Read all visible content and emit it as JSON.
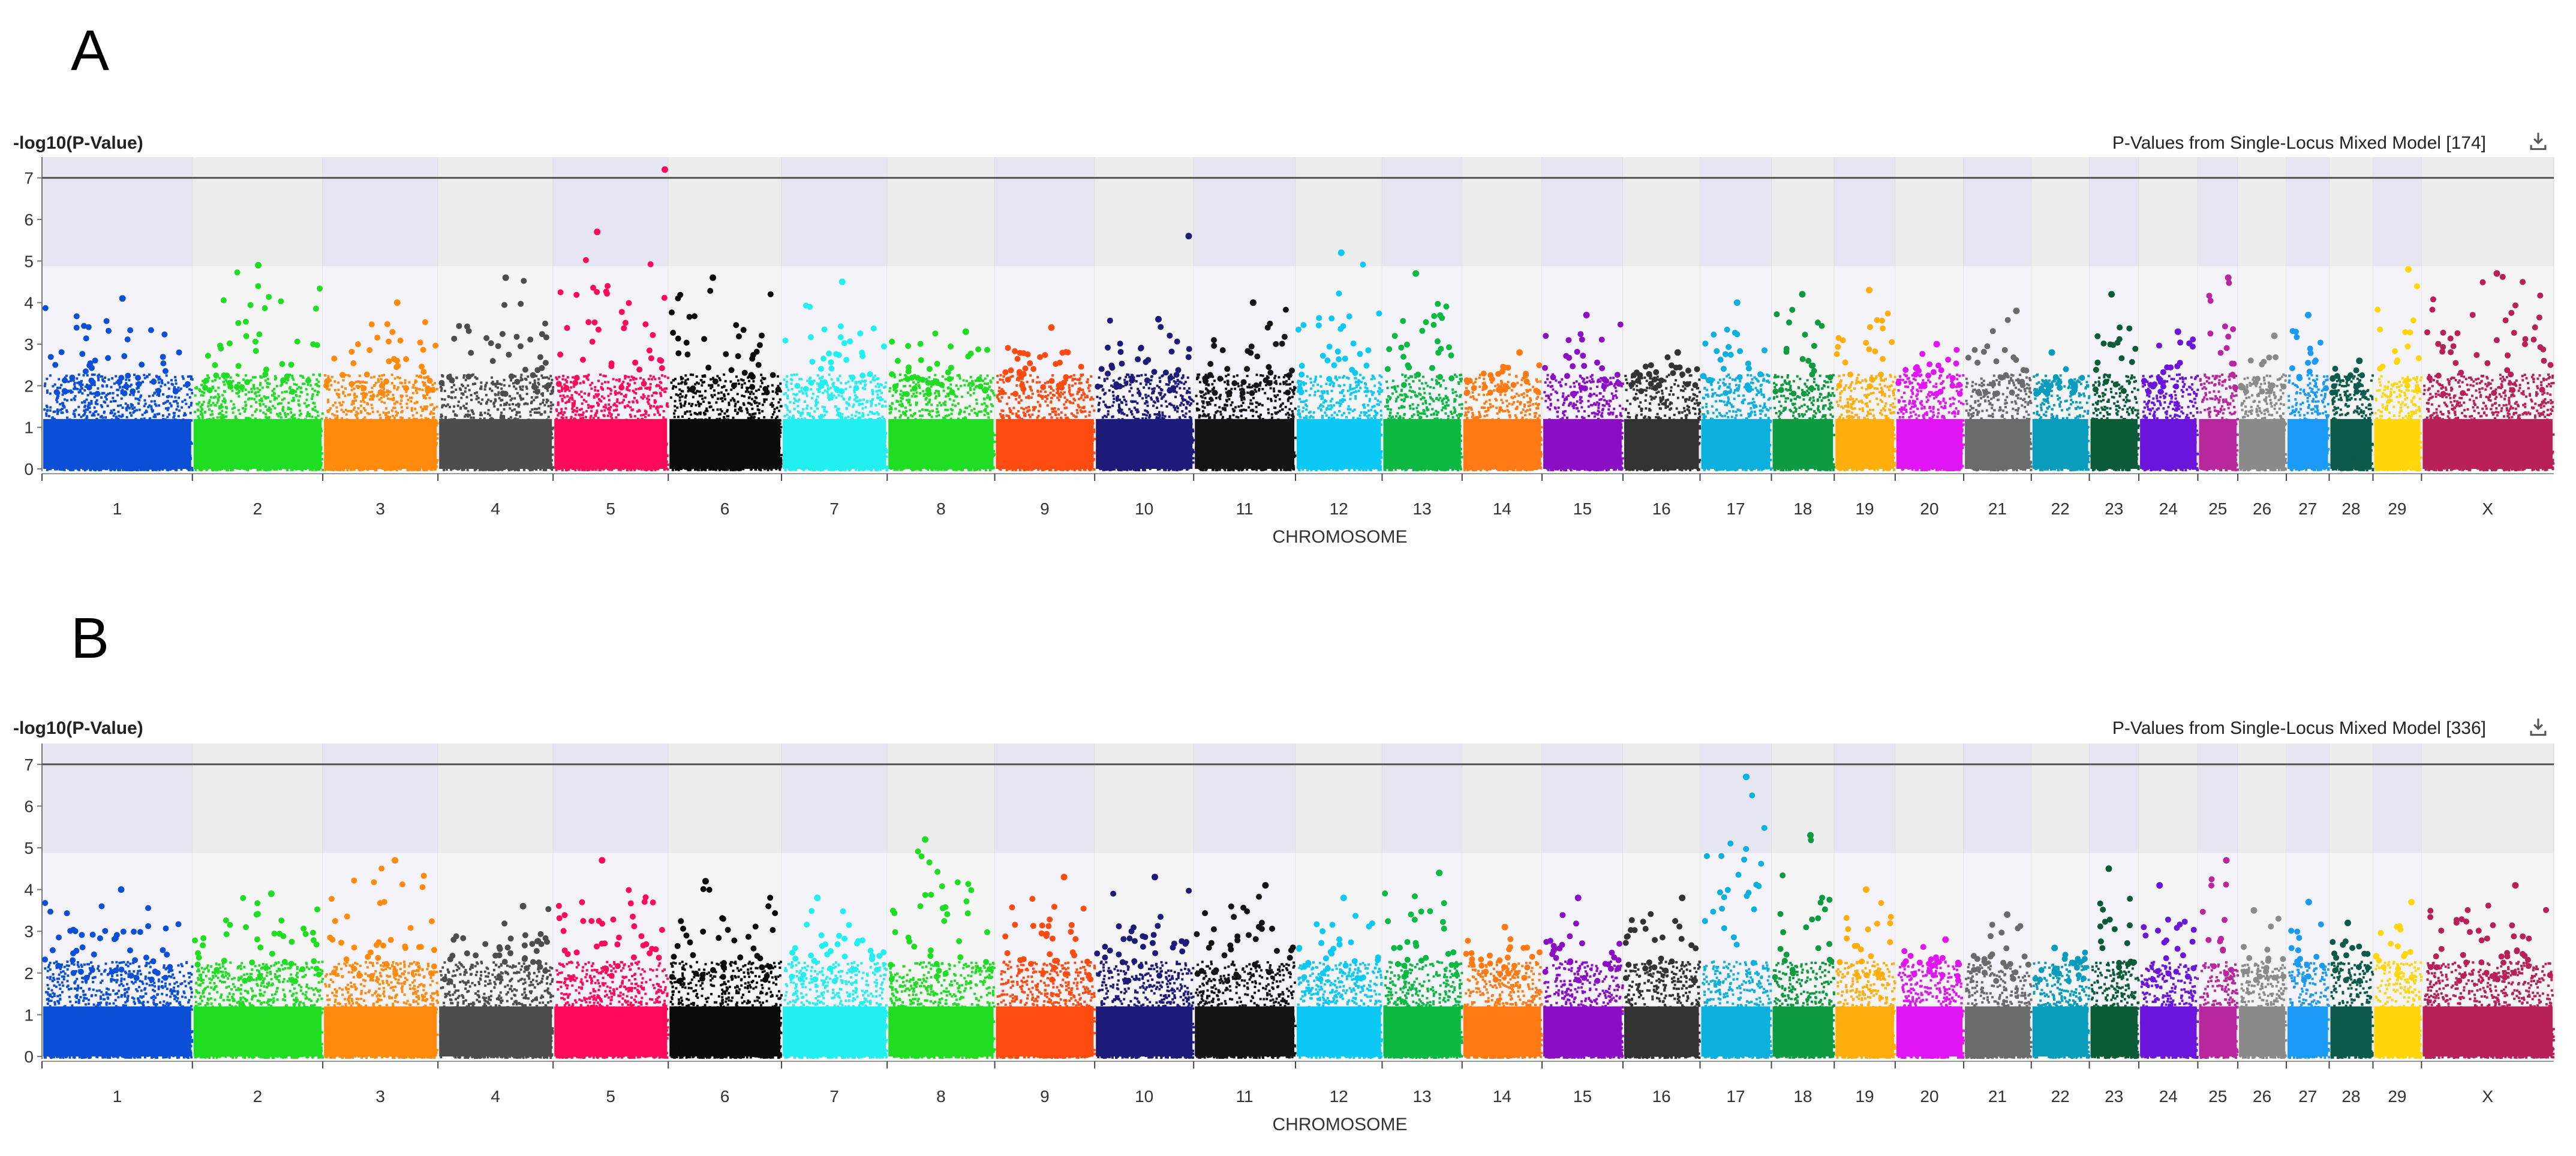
{
  "chart_data": [
    {
      "type": "scatter",
      "panel": "A",
      "title": "P-Values from Single-Locus Mixed Model [174]",
      "ylabel": "-log10(P-Value)",
      "xlabel": "CHROMOSOME",
      "ylim": [
        0,
        7.5
      ],
      "yticks": [
        0,
        1,
        2,
        3,
        4,
        5,
        6,
        7
      ],
      "threshold": 7.0,
      "chromosomes": [
        "1",
        "2",
        "3",
        "4",
        "5",
        "6",
        "7",
        "8",
        "9",
        "10",
        "11",
        "12",
        "13",
        "14",
        "15",
        "16",
        "17",
        "18",
        "19",
        "20",
        "21",
        "22",
        "23",
        "24",
        "25",
        "26",
        "27",
        "28",
        "29",
        "X"
      ],
      "chromosome_sizes": [
        158,
        137,
        121,
        121,
        121,
        119,
        111,
        113,
        105,
        104,
        107,
        91,
        84,
        84,
        85,
        81,
        75,
        66,
        64,
        72,
        71,
        61,
        52,
        62,
        42,
        51,
        45,
        46,
        51,
        139
      ],
      "colors": [
        "#0b4fd6",
        "#1fdd22",
        "#ff8a0c",
        "#4d4d4d",
        "#ff0a5a",
        "#0b0b0b",
        "#22f0f0",
        "#1fdd22",
        "#ff4a10",
        "#1e1a78",
        "#141414",
        "#0bc8f5",
        "#0bb842",
        "#ff7a14",
        "#8a0fc4",
        "#333333",
        "#0cb0dc",
        "#0e9a40",
        "#ffae0c",
        "#e014f5",
        "#6b6b6b",
        "#0a9cbc",
        "#0b5a38",
        "#6a14dc",
        "#b8279c",
        "#8a8a8a",
        "#1a9af5",
        "#0b5a4c",
        "#ffd60a",
        "#b8205a"
      ],
      "peaks": [
        4.1,
        4.9,
        4.0,
        4.6,
        5.7,
        4.6,
        4.5,
        3.3,
        3.4,
        3.6,
        4.0,
        5.2,
        4.7,
        2.8,
        3.7,
        2.8,
        4.0,
        4.2,
        4.3,
        3.0,
        3.8,
        2.8,
        4.2,
        3.3,
        4.6,
        3.2,
        3.7,
        2.6,
        4.8,
        4.7
      ],
      "highlights": [
        {
          "chr": "5",
          "pos": 0.97,
          "value": 7.2
        },
        {
          "chr": "10",
          "pos": 0.95,
          "value": 5.6
        }
      ]
    },
    {
      "type": "scatter",
      "panel": "B",
      "title": "P-Values from Single-Locus Mixed Model [336]",
      "ylabel": "-log10(P-Value)",
      "xlabel": "CHROMOSOME",
      "ylim": [
        0,
        7.5
      ],
      "yticks": [
        0,
        1,
        2,
        3,
        4,
        5,
        6,
        7
      ],
      "threshold": 7.0,
      "chromosomes": [
        "1",
        "2",
        "3",
        "4",
        "5",
        "6",
        "7",
        "8",
        "9",
        "10",
        "11",
        "12",
        "13",
        "14",
        "15",
        "16",
        "17",
        "18",
        "19",
        "20",
        "21",
        "22",
        "23",
        "24",
        "25",
        "26",
        "27",
        "28",
        "29",
        "X"
      ],
      "chromosome_sizes": [
        158,
        137,
        121,
        121,
        121,
        119,
        111,
        113,
        105,
        104,
        107,
        91,
        84,
        84,
        85,
        81,
        75,
        66,
        64,
        72,
        71,
        61,
        52,
        62,
        42,
        51,
        45,
        46,
        51,
        139
      ],
      "colors": [
        "#0b4fd6",
        "#1fdd22",
        "#ff8a0c",
        "#4d4d4d",
        "#ff0a5a",
        "#0b0b0b",
        "#22f0f0",
        "#1fdd22",
        "#ff4a10",
        "#1e1a78",
        "#141414",
        "#0bc8f5",
        "#0bb842",
        "#ff7a14",
        "#8a0fc4",
        "#333333",
        "#0cb0dc",
        "#0e9a40",
        "#ffae0c",
        "#e014f5",
        "#6b6b6b",
        "#0a9cbc",
        "#0b5a38",
        "#6a14dc",
        "#b8279c",
        "#8a8a8a",
        "#1a9af5",
        "#0b5a4c",
        "#ffd60a",
        "#b8205a"
      ],
      "peaks": [
        4.0,
        3.9,
        4.7,
        3.6,
        4.7,
        4.2,
        3.8,
        5.2,
        4.3,
        4.3,
        4.1,
        3.8,
        4.4,
        3.1,
        3.8,
        3.8,
        6.7,
        5.3,
        4.0,
        2.8,
        3.4,
        2.6,
        4.5,
        4.1,
        4.7,
        3.5,
        3.7,
        3.2,
        3.7,
        4.1
      ],
      "highlights": []
    }
  ]
}
